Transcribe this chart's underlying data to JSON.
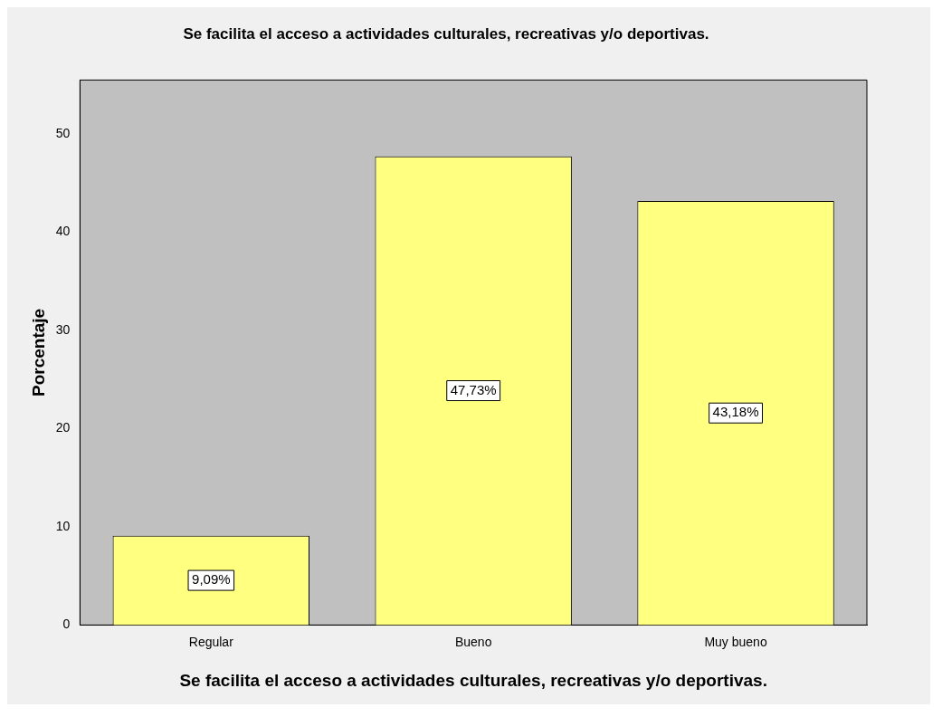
{
  "chart_data": {
    "type": "bar",
    "title": "Se facilita el acceso a actividades culturales, recreativas y/o deportivas.",
    "xlabel": "Se facilita el acceso a actividades culturales, recreativas y/o deportivas.",
    "ylabel": "Porcentaje",
    "categories": [
      "Regular",
      "Bueno",
      "Muy bueno"
    ],
    "values": [
      9.09,
      47.73,
      43.18
    ],
    "value_labels": [
      "9,09%",
      "47,73%",
      "43,18%"
    ],
    "color": "#ffff80",
    "ylim": [
      0,
      55.5
    ],
    "yticks": [
      0,
      10,
      20,
      30,
      40,
      50
    ],
    "grid": false,
    "legend": false
  }
}
